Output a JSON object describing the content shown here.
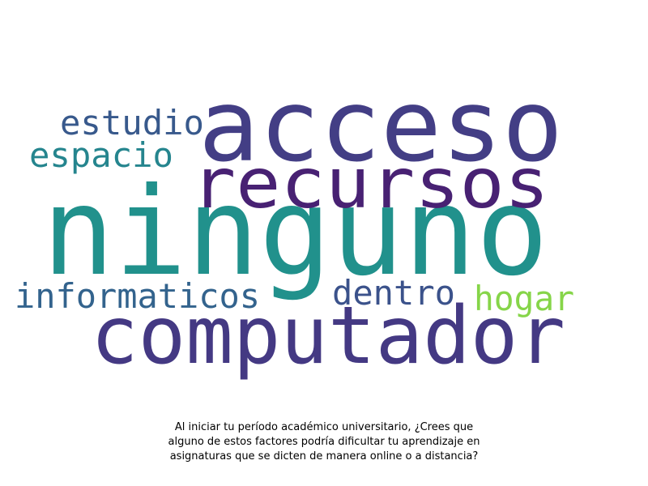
{
  "chart_data": {
    "type": "wordcloud",
    "words": [
      {
        "text": "ninguno",
        "color": "#21918c"
      },
      {
        "text": "acceso",
        "color": "#433e85"
      },
      {
        "text": "recursos",
        "color": "#482173"
      },
      {
        "text": "computador",
        "color": "#443983"
      },
      {
        "text": "estudio",
        "color": "#38598c"
      },
      {
        "text": "espacio",
        "color": "#25858e"
      },
      {
        "text": "informaticos",
        "color": "#33638d"
      },
      {
        "text": "dentro",
        "color": "#3b528b"
      },
      {
        "text": "hogar",
        "color": "#86d549"
      }
    ]
  },
  "caption": {
    "line1": "Al iniciar tu período académico universitario, ¿Crees que",
    "line2": "alguno de estos factores podría dificultar tu aprendizaje en",
    "line3": "asignaturas que se dicten de manera online o a distancia?"
  }
}
